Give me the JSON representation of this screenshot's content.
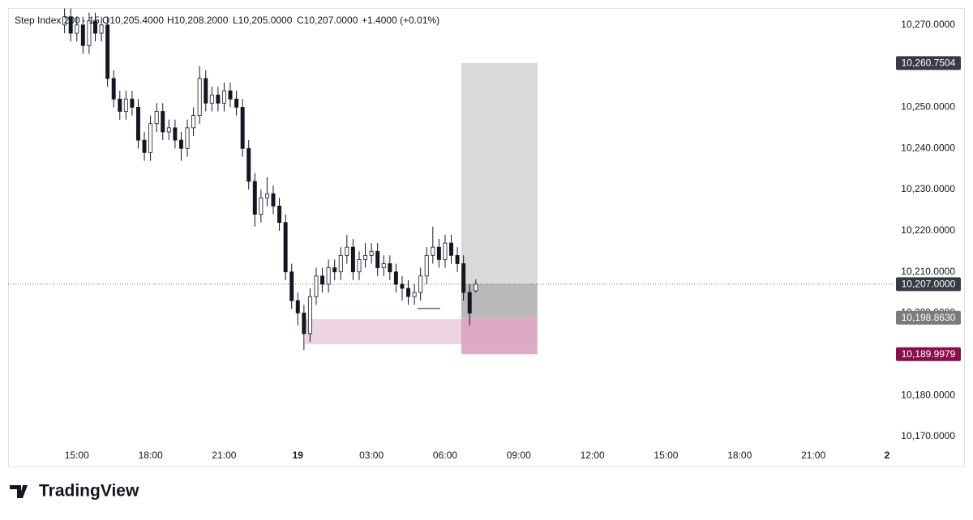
{
  "chart_data": {
    "type": "candlestick",
    "header": {
      "symbol": "Step Index 200 · 15",
      "open": "O10,205.4000",
      "high": "H10,208.2000",
      "low": "L10,205.0000",
      "close": "C10,207.0000",
      "change": "+1.4000 (+0.01%)"
    },
    "x": [
      14.5,
      14.75,
      15,
      15.25,
      15.5,
      15.75,
      16,
      16.25,
      16.5,
      16.75,
      17,
      17.25,
      17.5,
      17.75,
      18,
      18.25,
      18.5,
      18.75,
      19,
      19.25,
      19.5,
      19.75,
      20,
      20.25,
      20.5,
      20.75,
      21,
      21.25,
      21.5,
      21.75,
      22,
      22.25,
      22.5,
      22.75,
      23,
      23.25,
      23.5,
      23.75,
      24,
      24.25,
      24.5,
      24.75,
      25,
      25.25,
      25.5,
      25.75,
      26,
      26.25,
      26.5,
      26.75,
      27,
      27.25,
      27.5,
      27.75,
      28,
      28.25,
      28.5,
      28.75,
      29,
      29.25,
      29.5,
      29.75,
      30,
      30.25,
      30.5,
      30.75,
      31,
      31.25
    ],
    "open": [
      10270,
      10272,
      10268,
      10270,
      10265,
      10271,
      10268,
      10270,
      10257,
      10252,
      10249,
      10252,
      10250,
      10242,
      10239,
      10246,
      10249,
      10244,
      10245,
      10242,
      10240,
      10245,
      10248,
      10257,
      10251,
      10253,
      10251,
      10254,
      10252,
      10250,
      10240,
      10232,
      10224,
      10228,
      10229,
      10226,
      10222,
      10210,
      10203,
      10200,
      10195,
      10204,
      10209,
      10207,
      10211,
      10210,
      10214,
      10216,
      10210,
      10213,
      10214,
      10215,
      10211,
      10212,
      10210,
      10207,
      10206,
      10204,
      10205,
      10209,
      10214,
      10216,
      10213,
      10217,
      10214,
      10212,
      10205,
      10205.4
    ],
    "high": [
      10274,
      10274,
      10272,
      10272,
      10273,
      10273,
      10272,
      10272,
      10259,
      10254,
      10254,
      10254,
      10252,
      10244,
      10248,
      10251,
      10251,
      10247,
      10247,
      10244,
      10247,
      10250,
      10260,
      10259,
      10255,
      10255,
      10256,
      10256,
      10254,
      10252,
      10242,
      10234,
      10230,
      10233,
      10231,
      10228,
      10224,
      10212,
      10205,
      10202,
      10206,
      10211,
      10211,
      10213,
      10213,
      10216,
      10219,
      10218,
      10215,
      10217,
      10217,
      10217,
      10214,
      10214,
      10212,
      10209,
      10208,
      10207,
      10211,
      10216,
      10221,
      10218,
      10219,
      10219,
      10216,
      10214,
      10207,
      10208.2
    ],
    "low": [
      10268,
      10266,
      10266,
      10263,
      10263,
      10266,
      10266,
      10255,
      10250,
      10247,
      10247,
      10248,
      10240,
      10237,
      10237,
      10244,
      10242,
      10242,
      10240,
      10237,
      10238,
      10243,
      10246,
      10249,
      10249,
      10249,
      10249,
      10250,
      10248,
      10238,
      10230,
      10221,
      10222,
      10226,
      10224,
      10220,
      10208,
      10201,
      10197,
      10191,
      10193,
      10202,
      10205,
      10205,
      10208,
      10208,
      10212,
      10208,
      10208,
      10211,
      10212,
      10209,
      10209,
      10208,
      10205,
      10203,
      10202,
      10202,
      10203,
      10207,
      10212,
      10211,
      10211,
      10212,
      10210,
      10203,
      10197,
      10205
    ],
    "close": [
      10272,
      10268,
      10270,
      10265,
      10271,
      10268,
      10270,
      10257,
      10252,
      10249,
      10252,
      10250,
      10242,
      10239,
      10246,
      10249,
      10244,
      10245,
      10242,
      10240,
      10245,
      10248,
      10257,
      10251,
      10253,
      10251,
      10254,
      10252,
      10250,
      10240,
      10232,
      10224,
      10228,
      10229,
      10226,
      10222,
      10210,
      10203,
      10200,
      10195,
      10204,
      10209,
      10207,
      10211,
      10210,
      10214,
      10216,
      10210,
      10213,
      10214,
      10215,
      10211,
      10212,
      10210,
      10207,
      10206,
      10204,
      10205,
      10209,
      10214,
      10216,
      10213,
      10217,
      10214,
      10212,
      10205,
      10200,
      10207
    ],
    "up_color": "#131722",
    "down_color": "#131722",
    "xlim": [
      12.2,
      48.2
    ],
    "ylim": [
      10162.5,
      10274.1
    ],
    "xticks": [
      {
        "value": 15,
        "label": "15:00"
      },
      {
        "value": 18,
        "label": "18:00"
      },
      {
        "value": 21,
        "label": "21:00"
      },
      {
        "value": 24,
        "label": "19"
      },
      {
        "value": 27,
        "label": "03:00"
      },
      {
        "value": 30,
        "label": "06:00"
      },
      {
        "value": 33,
        "label": "09:00"
      },
      {
        "value": 36,
        "label": "12:00"
      },
      {
        "value": 39,
        "label": "15:00"
      },
      {
        "value": 42,
        "label": "18:00"
      },
      {
        "value": 45,
        "label": "21:00"
      },
      {
        "value": 48,
        "label": "2"
      }
    ],
    "yticks": [
      {
        "value": 10170,
        "label": "10,170.0000"
      },
      {
        "value": 10180,
        "label": "10,180.0000"
      },
      {
        "value": 10190,
        "label": "10,190.0000"
      },
      {
        "value": 10200,
        "label": "10,200.0000"
      },
      {
        "value": 10210,
        "label": "10,210.0000"
      },
      {
        "value": 10220,
        "label": "10,220.0000"
      },
      {
        "value": 10230,
        "label": "10,230.0000"
      },
      {
        "value": 10240,
        "label": "10,240.0000"
      },
      {
        "value": 10250,
        "label": "10,250.0000"
      },
      {
        "value": 10260,
        "label": "10,260.0000"
      },
      {
        "value": 10270,
        "label": "10,270.0000"
      }
    ],
    "position": {
      "x_range": [
        30.66,
        33.76
      ],
      "target": 10260.7504,
      "current": 10207,
      "entry": 10198.863,
      "stop": 10189.9979,
      "profit_color": "#d9d9d9",
      "open_color": "#b9b9b9",
      "stop_color": "#d9a3c3"
    },
    "zone": {
      "x_range": [
        24.3,
        33.76
      ],
      "y_range": [
        10192.4,
        10198.5
      ],
      "color": "#eed3e2"
    },
    "level_line": {
      "x_range": [
        28.88,
        29.8
      ],
      "value": 10201.1
    },
    "price_labels": [
      {
        "value": 10260.7504,
        "label": "10,260.7504",
        "color": "#363a45"
      },
      {
        "value": 10207,
        "label": "10,207.0000",
        "color": "#363a45"
      },
      {
        "value": 10198.863,
        "label": "10,198.8630",
        "color": "#7b7b7b"
      },
      {
        "value": 10189.9979,
        "label": "10,189.9979",
        "color": "#880e4f"
      }
    ],
    "footer": "TradingView"
  }
}
